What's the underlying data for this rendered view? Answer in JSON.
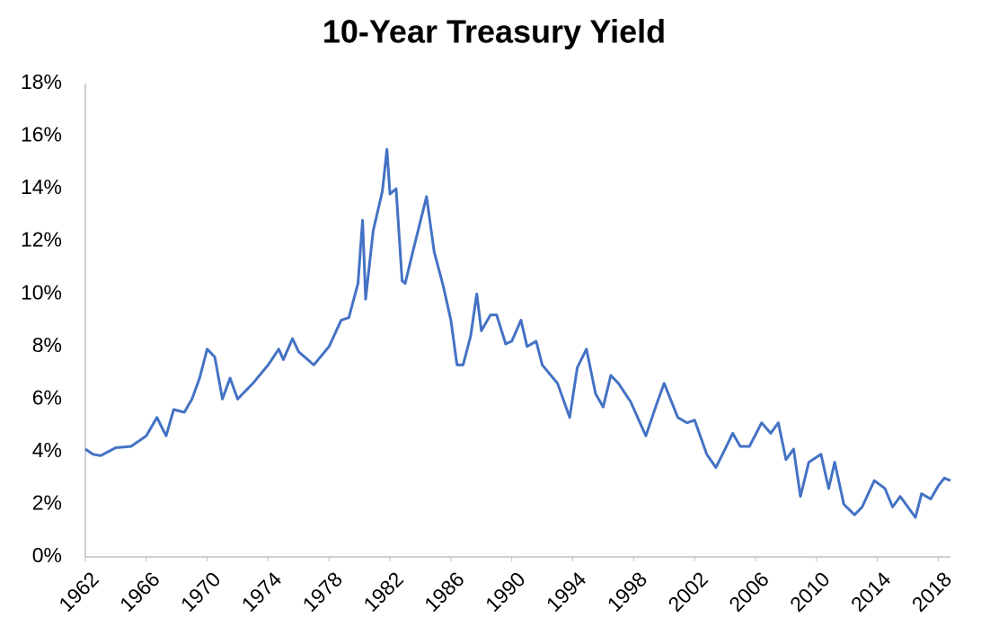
{
  "chart_data": {
    "type": "line",
    "title": "10-Year Treasury Yield",
    "color": "#4472c4",
    "x": [
      1962,
      1962.5,
      1963,
      1964,
      1965,
      1966,
      1966.7,
      1967.3,
      1967.8,
      1968.5,
      1969,
      1969.5,
      1970,
      1970.5,
      1971,
      1971.5,
      1972,
      1973,
      1974,
      1974.7,
      1975,
      1975.6,
      1976,
      1977,
      1978,
      1978.8,
      1979.3,
      1979.9,
      1980.2,
      1980.4,
      1980.9,
      1981.5,
      1981.8,
      1982,
      1982.4,
      1982.8,
      1983,
      1983.5,
      1984.4,
      1984.9,
      1985.5,
      1986,
      1986.4,
      1986.8,
      1987.3,
      1987.7,
      1988,
      1988.6,
      1989,
      1989.6,
      1990,
      1990.6,
      1991,
      1991.6,
      1992,
      1993,
      1993.8,
      1994.3,
      1994.9,
      1995.5,
      1996,
      1996.5,
      1997,
      1997.8,
      1998.8,
      1999.5,
      2000,
      2000.9,
      2001.5,
      2002,
      2002.8,
      2003.4,
      2004,
      2004.5,
      2005,
      2005.6,
      2006.4,
      2007,
      2007.5,
      2008,
      2008.5,
      2008.95,
      2009.5,
      2010.3,
      2010.8,
      2011.2,
      2011.8,
      2012.5,
      2013,
      2013.8,
      2014.5,
      2015,
      2015.5,
      2016.5,
      2016.9,
      2017.5,
      2018,
      2018.4,
      2018.8
    ],
    "values": [
      4.1,
      3.9,
      3.85,
      4.15,
      4.2,
      4.6,
      5.3,
      4.6,
      5.6,
      5.5,
      6.0,
      6.8,
      7.9,
      7.6,
      6.0,
      6.8,
      6.0,
      6.6,
      7.3,
      7.9,
      7.5,
      8.3,
      7.8,
      7.3,
      8.0,
      9.0,
      9.1,
      10.4,
      12.8,
      9.8,
      12.4,
      13.9,
      15.5,
      13.8,
      14.0,
      10.5,
      10.4,
      11.6,
      13.7,
      11.6,
      10.3,
      9.0,
      7.3,
      7.3,
      8.4,
      10.0,
      8.6,
      9.2,
      9.2,
      8.1,
      8.2,
      9.0,
      8.0,
      8.2,
      7.3,
      6.6,
      5.3,
      7.2,
      7.9,
      6.2,
      5.7,
      6.9,
      6.6,
      5.9,
      4.6,
      5.8,
      6.6,
      5.3,
      5.1,
      5.2,
      3.9,
      3.4,
      4.1,
      4.7,
      4.2,
      4.2,
      5.1,
      4.7,
      5.1,
      3.7,
      4.1,
      2.3,
      3.6,
      3.9,
      2.6,
      3.6,
      2.0,
      1.6,
      1.9,
      2.9,
      2.6,
      1.9,
      2.3,
      1.5,
      2.4,
      2.2,
      2.7,
      3.0,
      2.9
    ],
    "xlim": [
      1962,
      2018.8
    ],
    "xticks": [
      1962,
      1966,
      1970,
      1974,
      1978,
      1982,
      1986,
      1990,
      1994,
      1998,
      2002,
      2006,
      2010,
      2014,
      2018
    ],
    "ylim": [
      0,
      18
    ],
    "yticks": [
      {
        "value": 0,
        "label": "0%"
      },
      {
        "value": 2,
        "label": "2%"
      },
      {
        "value": 4,
        "label": "4%"
      },
      {
        "value": 6,
        "label": "6%"
      },
      {
        "value": 8,
        "label": "8%"
      },
      {
        "value": 10,
        "label": "10%"
      },
      {
        "value": 12,
        "label": "12%"
      },
      {
        "value": 14,
        "label": "14%"
      },
      {
        "value": 16,
        "label": "16%"
      },
      {
        "value": 18,
        "label": "18%"
      }
    ],
    "grid": false
  }
}
